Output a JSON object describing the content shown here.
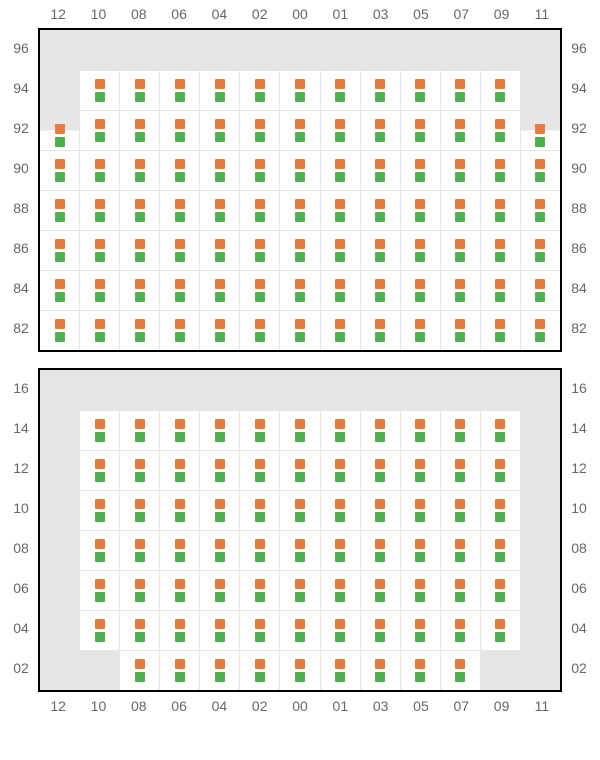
{
  "colors": {
    "marker_top": "#e67b3f",
    "marker_bottom": "#4caf50",
    "empty_bg": "#e5e5e5",
    "grid_line": "#e5e5e5",
    "border": "#000000",
    "label": "#666666",
    "background": "#ffffff"
  },
  "axis_columns": [
    "12",
    "10",
    "08",
    "06",
    "04",
    "02",
    "00",
    "01",
    "03",
    "05",
    "07",
    "09",
    "11"
  ],
  "panels": [
    {
      "id": "top",
      "axis_top": true,
      "axis_bottom": false,
      "rows": [
        {
          "label": "96",
          "cells": [
            "empty",
            "empty",
            "empty",
            "empty",
            "empty",
            "empty",
            "empty",
            "empty",
            "empty",
            "empty",
            "empty",
            "empty",
            "empty"
          ]
        },
        {
          "label": "94",
          "cells": [
            "empty",
            "pair",
            "pair",
            "pair",
            "pair",
            "pair",
            "pair",
            "pair",
            "pair",
            "pair",
            "pair",
            "pair",
            "empty"
          ]
        },
        {
          "label": "92",
          "cells": [
            "split-top",
            "pair",
            "pair",
            "pair",
            "pair",
            "pair",
            "pair",
            "pair",
            "pair",
            "pair",
            "pair",
            "pair",
            "split-top"
          ]
        },
        {
          "label": "90",
          "cells": [
            "pair",
            "pair",
            "pair",
            "pair",
            "pair",
            "pair",
            "pair",
            "pair",
            "pair",
            "pair",
            "pair",
            "pair",
            "pair"
          ]
        },
        {
          "label": "88",
          "cells": [
            "pair",
            "pair",
            "pair",
            "pair",
            "pair",
            "pair",
            "pair",
            "pair",
            "pair",
            "pair",
            "pair",
            "pair",
            "pair"
          ]
        },
        {
          "label": "86",
          "cells": [
            "pair",
            "pair",
            "pair",
            "pair",
            "pair",
            "pair",
            "pair",
            "pair",
            "pair",
            "pair",
            "pair",
            "pair",
            "pair"
          ]
        },
        {
          "label": "84",
          "cells": [
            "pair",
            "pair",
            "pair",
            "pair",
            "pair",
            "pair",
            "pair",
            "pair",
            "pair",
            "pair",
            "pair",
            "pair",
            "pair"
          ]
        },
        {
          "label": "82",
          "cells": [
            "pair",
            "pair",
            "pair",
            "pair",
            "pair",
            "pair",
            "pair",
            "pair",
            "pair",
            "pair",
            "pair",
            "pair",
            "pair"
          ]
        }
      ]
    },
    {
      "id": "bottom",
      "axis_top": false,
      "axis_bottom": true,
      "rows": [
        {
          "label": "16",
          "cells": [
            "empty",
            "empty",
            "empty",
            "empty",
            "empty",
            "empty",
            "empty",
            "empty",
            "empty",
            "empty",
            "empty",
            "empty",
            "empty"
          ]
        },
        {
          "label": "14",
          "cells": [
            "empty",
            "pair",
            "pair",
            "pair",
            "pair",
            "pair",
            "pair",
            "pair",
            "pair",
            "pair",
            "pair",
            "pair",
            "empty"
          ]
        },
        {
          "label": "12",
          "cells": [
            "empty",
            "pair",
            "pair",
            "pair",
            "pair",
            "pair",
            "pair",
            "pair",
            "pair",
            "pair",
            "pair",
            "pair",
            "empty"
          ]
        },
        {
          "label": "10",
          "cells": [
            "empty",
            "pair",
            "pair",
            "pair",
            "pair",
            "pair",
            "pair",
            "pair",
            "pair",
            "pair",
            "pair",
            "pair",
            "empty"
          ]
        },
        {
          "label": "08",
          "cells": [
            "empty",
            "pair",
            "pair",
            "pair",
            "pair",
            "pair",
            "pair",
            "pair",
            "pair",
            "pair",
            "pair",
            "pair",
            "empty"
          ]
        },
        {
          "label": "06",
          "cells": [
            "empty",
            "pair",
            "pair",
            "pair",
            "pair",
            "pair",
            "pair",
            "pair",
            "pair",
            "pair",
            "pair",
            "pair",
            "empty"
          ]
        },
        {
          "label": "04",
          "cells": [
            "empty",
            "pair",
            "pair",
            "pair",
            "pair",
            "pair",
            "pair",
            "pair",
            "pair",
            "pair",
            "pair",
            "pair",
            "empty"
          ]
        },
        {
          "label": "02",
          "cells": [
            "empty",
            "empty",
            "pair",
            "pair",
            "pair",
            "pair",
            "pair",
            "pair",
            "pair",
            "pair",
            "pair",
            "empty",
            "empty"
          ]
        }
      ]
    }
  ]
}
